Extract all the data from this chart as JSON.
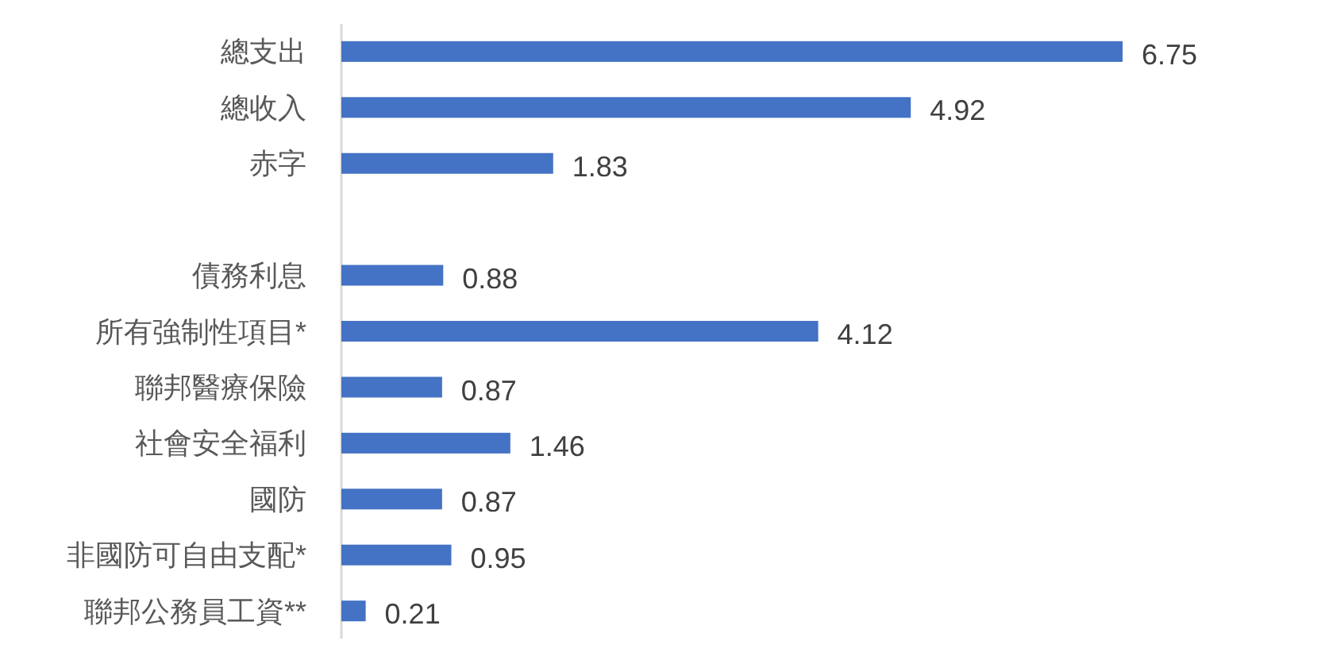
{
  "chart_data": {
    "type": "bar",
    "orientation": "horizontal",
    "categories": [
      "總支出",
      "總收入",
      "赤字",
      null,
      "債務利息",
      "所有強制性項目*",
      "聯邦醫療保險",
      "社會安全福利",
      "國防",
      "非國防可自由支配*",
      "聯邦公務員工資**"
    ],
    "values": [
      6.75,
      4.92,
      1.83,
      null,
      0.88,
      4.12,
      0.87,
      1.46,
      0.87,
      0.95,
      0.21
    ],
    "color": "#4472c4",
    "data_labels": true
  }
}
